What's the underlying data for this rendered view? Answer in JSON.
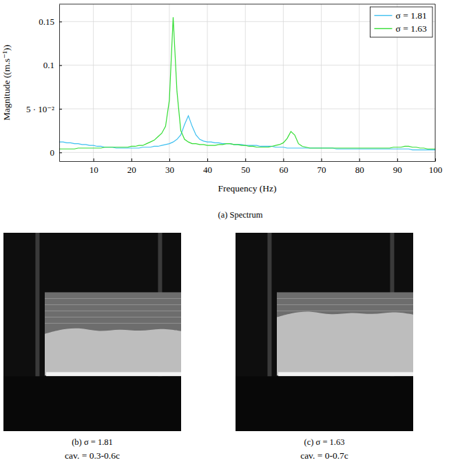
{
  "chart_data": {
    "type": "line",
    "x_label": "Frequency (Hz)",
    "y_label": "Magnitude ((m.s⁻¹))",
    "x": [
      1,
      2,
      3,
      4,
      5,
      6,
      7,
      8,
      9,
      10,
      11,
      12,
      13,
      14,
      15,
      16,
      17,
      18,
      19,
      20,
      21,
      22,
      23,
      24,
      25,
      26,
      27,
      28,
      29,
      30,
      31,
      32,
      33,
      34,
      35,
      36,
      37,
      38,
      39,
      40,
      41,
      42,
      43,
      44,
      45,
      46,
      47,
      48,
      49,
      50,
      51,
      52,
      53,
      54,
      55,
      56,
      57,
      58,
      59,
      60,
      61,
      62,
      63,
      64,
      65,
      66,
      67,
      68,
      69,
      70,
      71,
      72,
      73,
      74,
      75,
      76,
      77,
      78,
      79,
      80,
      81,
      82,
      83,
      84,
      85,
      86,
      87,
      88,
      89,
      90,
      91,
      92,
      93,
      94,
      95,
      96,
      97,
      98,
      99,
      100
    ],
    "series": [
      {
        "name": "σ = 1.81",
        "color": "#3cbff0",
        "values": [
          0.012,
          0.012,
          0.011,
          0.011,
          0.01,
          0.01,
          0.009,
          0.009,
          0.008,
          0.008,
          0.007,
          0.007,
          0.006,
          0.006,
          0.006,
          0.005,
          0.005,
          0.005,
          0.005,
          0.005,
          0.005,
          0.005,
          0.006,
          0.006,
          0.006,
          0.007,
          0.007,
          0.008,
          0.009,
          0.01,
          0.012,
          0.015,
          0.02,
          0.032,
          0.042,
          0.03,
          0.02,
          0.015,
          0.013,
          0.012,
          0.012,
          0.011,
          0.011,
          0.01,
          0.01,
          0.01,
          0.009,
          0.009,
          0.009,
          0.008,
          0.008,
          0.008,
          0.008,
          0.007,
          0.007,
          0.007,
          0.007,
          0.006,
          0.006,
          0.006,
          0.005,
          0.005,
          0.005,
          0.005,
          0.005,
          0.005,
          0.005,
          0.005,
          0.005,
          0.005,
          0.005,
          0.005,
          0.005,
          0.004,
          0.004,
          0.004,
          0.004,
          0.004,
          0.004,
          0.004,
          0.004,
          0.004,
          0.004,
          0.004,
          0.004,
          0.004,
          0.004,
          0.004,
          0.004,
          0.004,
          0.004,
          0.004,
          0.004,
          0.003,
          0.003,
          0.003,
          0.003,
          0.003,
          0.003,
          0.003
        ]
      },
      {
        "name": "σ = 1.63",
        "color": "#33dd33",
        "values": [
          0.004,
          0.004,
          0.004,
          0.004,
          0.004,
          0.005,
          0.005,
          0.005,
          0.005,
          0.005,
          0.005,
          0.005,
          0.006,
          0.006,
          0.006,
          0.006,
          0.006,
          0.006,
          0.006,
          0.007,
          0.007,
          0.008,
          0.008,
          0.01,
          0.012,
          0.014,
          0.018,
          0.022,
          0.03,
          0.06,
          0.155,
          0.07,
          0.025,
          0.015,
          0.012,
          0.01,
          0.01,
          0.009,
          0.009,
          0.008,
          0.008,
          0.008,
          0.009,
          0.009,
          0.01,
          0.01,
          0.009,
          0.009,
          0.008,
          0.008,
          0.007,
          0.007,
          0.006,
          0.006,
          0.006,
          0.006,
          0.007,
          0.008,
          0.009,
          0.011,
          0.016,
          0.024,
          0.02,
          0.01,
          0.007,
          0.006,
          0.005,
          0.005,
          0.005,
          0.005,
          0.005,
          0.005,
          0.005,
          0.005,
          0.005,
          0.005,
          0.005,
          0.005,
          0.005,
          0.005,
          0.005,
          0.005,
          0.005,
          0.005,
          0.005,
          0.005,
          0.005,
          0.005,
          0.006,
          0.006,
          0.006,
          0.007,
          0.007,
          0.006,
          0.006,
          0.005,
          0.005,
          0.004,
          0.004,
          0.004
        ]
      }
    ],
    "xlim": [
      1,
      100
    ],
    "xticks": [
      10,
      20,
      30,
      40,
      50,
      60,
      70,
      80,
      90,
      100
    ],
    "ylim": [
      -0.01,
      0.17
    ],
    "yticks": [
      0,
      {
        "value": 0.05,
        "label": "5 · 10⁻²"
      },
      0.1,
      0.15
    ],
    "grid": true,
    "legend": "top-right"
  },
  "spectrum_caption": "(a) Spectrum",
  "photos": [
    {
      "caption": "(b) σ = 1.81",
      "cavity": "cav. = 0.3-0.6c"
    },
    {
      "caption": "(c) σ = 1.63",
      "cavity": "cav. = 0-0.7c"
    }
  ]
}
